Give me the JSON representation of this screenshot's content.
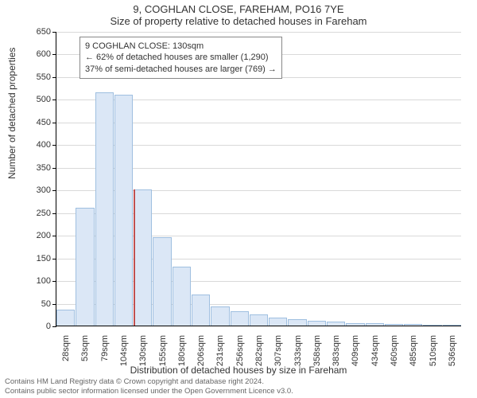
{
  "title_main": "9, COGHLAN CLOSE, FAREHAM, PO16 7YE",
  "title_sub": "Size of property relative to detached houses in Fareham",
  "y_axis_label": "Number of detached properties",
  "x_axis_label": "Distribution of detached houses by size in Fareham",
  "chart": {
    "type": "bar",
    "background_color": "#ffffff",
    "grid_color": "#d9d9d9",
    "bar_fill": "#dbe7f6",
    "bar_stroke": "#9fbfe0",
    "marker_color": "#c05050",
    "annotation_border": "#888888",
    "ylim_max": 650,
    "y_ticks": [
      0,
      50,
      100,
      150,
      200,
      250,
      300,
      350,
      400,
      450,
      500,
      550,
      600,
      650
    ],
    "x_labels": [
      "28sqm",
      "53sqm",
      "79sqm",
      "104sqm",
      "130sqm",
      "155sqm",
      "180sqm",
      "206sqm",
      "231sqm",
      "256sqm",
      "282sqm",
      "307sqm",
      "333sqm",
      "358sqm",
      "383sqm",
      "409sqm",
      "434sqm",
      "460sqm",
      "485sqm",
      "510sqm",
      "536sqm"
    ],
    "values": [
      35,
      260,
      515,
      510,
      300,
      195,
      130,
      68,
      42,
      32,
      25,
      18,
      14,
      10,
      8,
      6,
      5,
      4,
      3,
      2,
      2
    ],
    "marker_index": 4
  },
  "annotation": {
    "line1": "9 COGHLAN CLOSE: 130sqm",
    "line2": "← 62% of detached houses are smaller (1,290)",
    "line3": "37% of semi-detached houses are larger (769) →"
  },
  "footer": {
    "line1": "Contains HM Land Registry data © Crown copyright and database right 2024.",
    "line2": "Contains public sector information licensed under the Open Government Licence v3.0."
  }
}
